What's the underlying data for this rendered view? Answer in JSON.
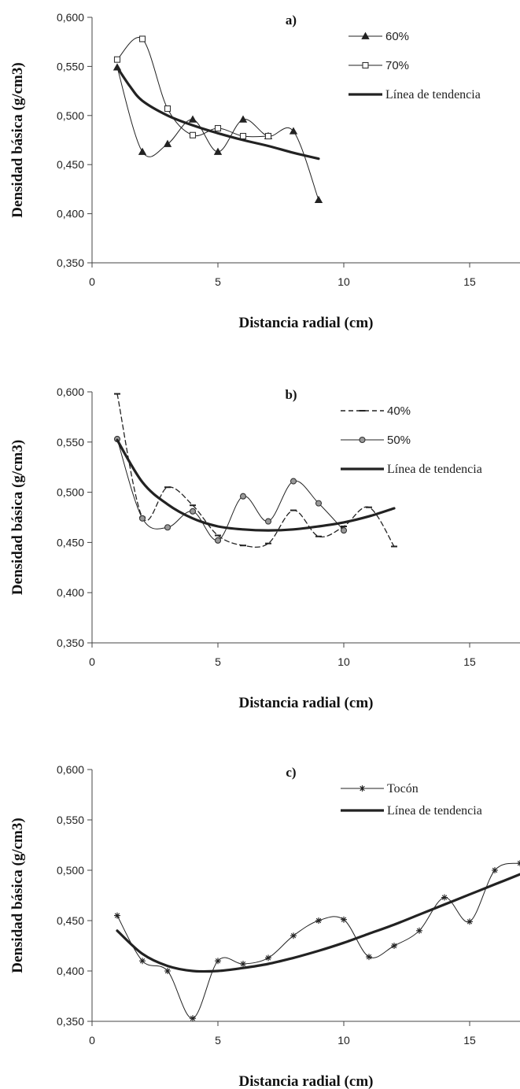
{
  "chart_data": [
    {
      "type": "line",
      "panel_label": "a)",
      "xlabel": "Distancia radial (cm)",
      "ylabel": "Densidad básica  (g/cm3)",
      "xlim": [
        0,
        17
      ],
      "ylim": [
        0.35,
        0.6
      ],
      "x_ticks": [
        "0",
        "5",
        "10",
        "15"
      ],
      "y_ticks": [
        "0,350",
        "0,400",
        "0,450",
        "0,500",
        "0,550",
        "0,600"
      ],
      "grid": false,
      "legend_position": "top-right",
      "series": [
        {
          "name": "60%",
          "marker": "triangle-filled",
          "style": "solid-thin",
          "x": [
            1,
            2,
            3,
            4,
            5,
            6,
            7,
            8,
            9
          ],
          "y": [
            0.549,
            0.463,
            0.471,
            0.496,
            0.463,
            0.496,
            0.479,
            0.484,
            0.414
          ]
        },
        {
          "name": "70%",
          "marker": "square-open",
          "style": "solid-thin",
          "x": [
            1,
            2,
            3,
            4,
            5,
            6,
            7
          ],
          "y": [
            0.557,
            0.578,
            0.507,
            0.48,
            0.487,
            0.479,
            0.479
          ]
        },
        {
          "name": "Línea de tendencia",
          "marker": "none",
          "style": "solid-thick",
          "x": [
            1,
            1.5,
            2,
            3,
            4,
            5,
            6,
            7,
            8,
            9
          ],
          "y": [
            0.549,
            0.53,
            0.515,
            0.5,
            0.49,
            0.482,
            0.475,
            0.469,
            0.462,
            0.456
          ]
        }
      ]
    },
    {
      "type": "line",
      "panel_label": "b)",
      "xlabel": "Distancia radial (cm)",
      "ylabel": "Densidad básica  (g/cm3)",
      "xlim": [
        0,
        17
      ],
      "ylim": [
        0.35,
        0.6
      ],
      "x_ticks": [
        "0",
        "5",
        "10",
        "15"
      ],
      "y_ticks": [
        "0,350",
        "0,400",
        "0,450",
        "0,500",
        "0,550",
        "0,600"
      ],
      "grid": false,
      "legend_position": "top-right",
      "series": [
        {
          "name": "40%",
          "marker": "dash",
          "style": "dashed",
          "x": [
            1,
            2,
            3,
            4,
            5,
            6,
            7,
            8,
            9,
            10,
            11,
            12
          ],
          "y": [
            0.598,
            0.475,
            0.505,
            0.487,
            0.457,
            0.447,
            0.449,
            0.482,
            0.456,
            0.466,
            0.485,
            0.446
          ]
        },
        {
          "name": "50%",
          "marker": "circle",
          "style": "solid-thin",
          "x": [
            1,
            2,
            3,
            4,
            5,
            6,
            7,
            8,
            9,
            10
          ],
          "y": [
            0.553,
            0.474,
            0.465,
            0.481,
            0.452,
            0.496,
            0.471,
            0.511,
            0.489,
            0.462
          ]
        },
        {
          "name": "Línea de tendencia",
          "marker": "none",
          "style": "solid-thick",
          "x": [
            1,
            2,
            3,
            4,
            5,
            6,
            7,
            8,
            9,
            10,
            11,
            12
          ],
          "y": [
            0.552,
            0.51,
            0.488,
            0.474,
            0.466,
            0.463,
            0.462,
            0.463,
            0.466,
            0.47,
            0.476,
            0.484
          ]
        }
      ]
    },
    {
      "type": "line",
      "panel_label": "c)",
      "xlabel": "Distancia radial (cm)",
      "ylabel": "Densidad básica  (g/cm3)",
      "xlim": [
        0,
        17
      ],
      "ylim": [
        0.35,
        0.6
      ],
      "x_ticks": [
        "0",
        "5",
        "10",
        "15"
      ],
      "y_ticks": [
        "0,350",
        "0,400",
        "0,450",
        "0,500",
        "0,550",
        "0,600"
      ],
      "grid": false,
      "legend_position": "top-right",
      "series": [
        {
          "name": "Tocón",
          "marker": "asterisk",
          "style": "solid-thin",
          "x": [
            1,
            2,
            3,
            4,
            5,
            6,
            7,
            8,
            9,
            10,
            11,
            12,
            13,
            14,
            15,
            16,
            17
          ],
          "y": [
            0.455,
            0.41,
            0.4,
            0.353,
            0.41,
            0.407,
            0.413,
            0.435,
            0.45,
            0.451,
            0.414,
            0.425,
            0.44,
            0.473,
            0.449,
            0.5,
            0.507
          ]
        },
        {
          "name": "Línea de tendencia",
          "marker": "none",
          "style": "solid-thick",
          "x": [
            1,
            2,
            3,
            4,
            5,
            6,
            7,
            8,
            9,
            10,
            11,
            12,
            13,
            14,
            15,
            16,
            17
          ],
          "y": [
            0.44,
            0.417,
            0.405,
            0.4,
            0.4,
            0.403,
            0.407,
            0.413,
            0.42,
            0.428,
            0.437,
            0.446,
            0.456,
            0.466,
            0.476,
            0.486,
            0.496
          ]
        }
      ]
    }
  ]
}
